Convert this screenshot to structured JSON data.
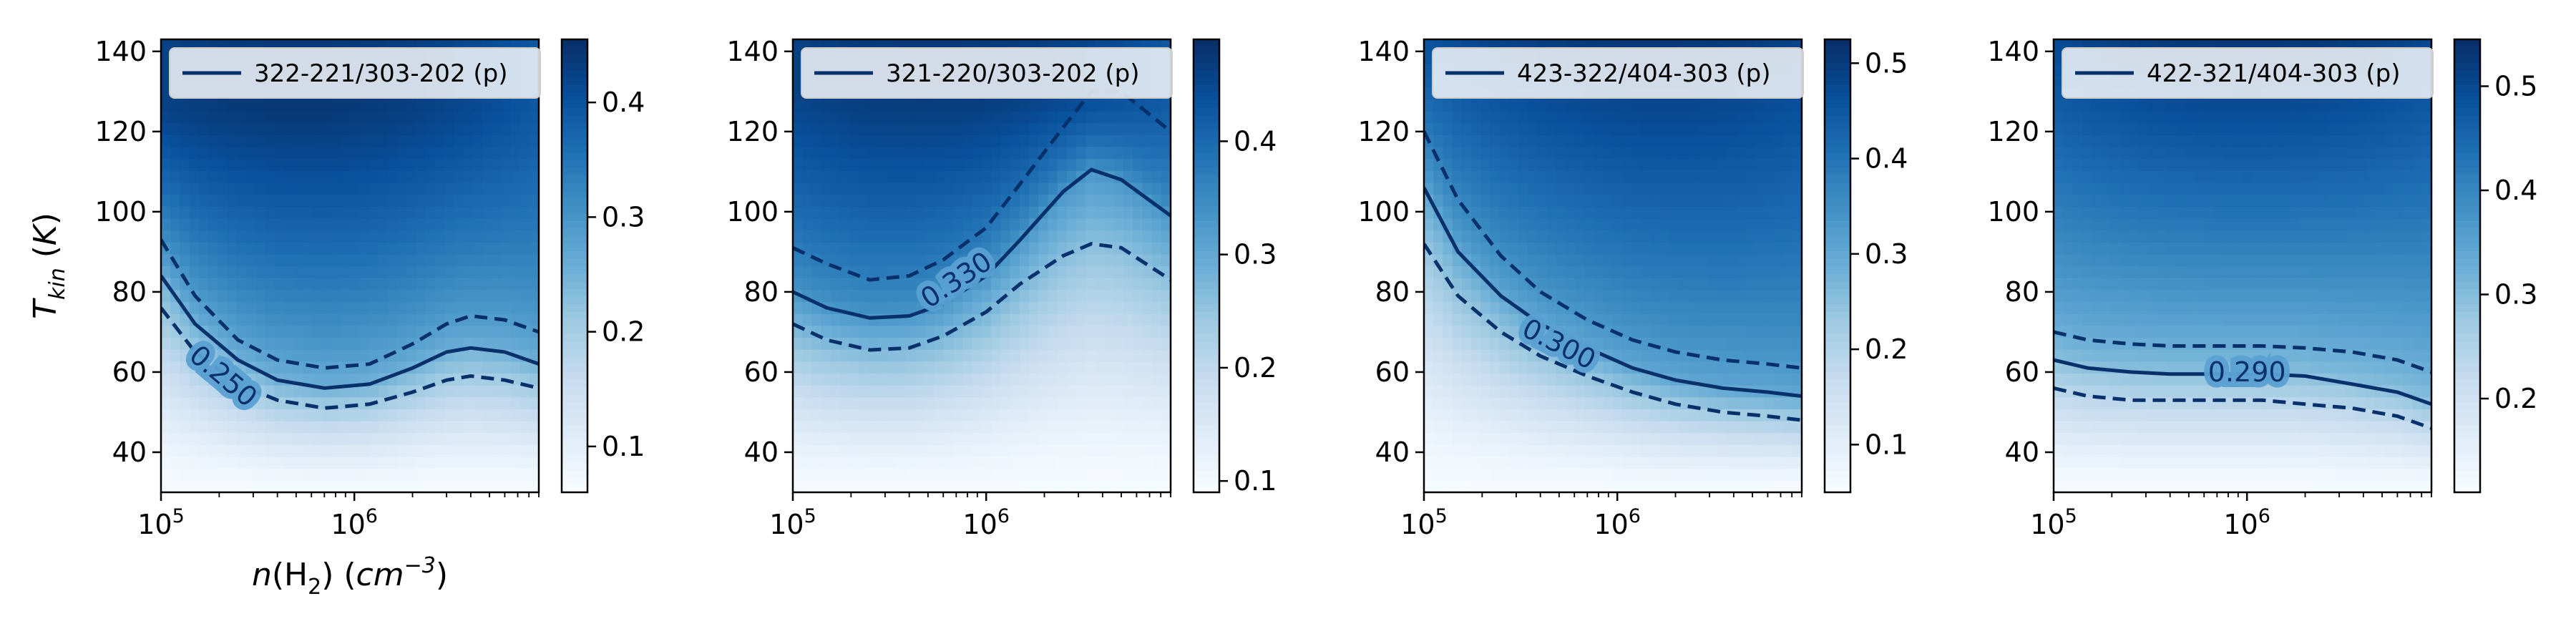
{
  "chart_data": [
    {
      "type": "heatmap",
      "title": "",
      "xlabel": "n(H2) (cm-3)",
      "ylabel": "T_kin (K)",
      "xscale": "log",
      "xlim": [
        100000,
        9000000
      ],
      "ylim": [
        30,
        143
      ],
      "x_ticks": [
        {
          "value": 100000,
          "base": "10",
          "exp": "5"
        },
        {
          "value": 1000000,
          "base": "10",
          "exp": "6"
        }
      ],
      "y_ticks": [
        40,
        60,
        80,
        100,
        120,
        140
      ],
      "colormap": "Blues",
      "colorbar": {
        "vmin": 0.06,
        "vmax": 0.455,
        "ticks": [
          "0.1",
          "0.2",
          "0.3",
          "0.4"
        ],
        "tick_values": [
          0.1,
          0.2,
          0.3,
          0.4
        ]
      },
      "field": {
        "peak_x": 500000,
        "peak_y": 125
      },
      "legend": {
        "label": "322-221/303-202 (p)",
        "placement": "upper-left"
      },
      "contour": {
        "level_label": "0.250",
        "label_at": {
          "x": 210000,
          "y": 59
        },
        "center": {
          "x": [
            100000,
            150000,
            250000,
            400000,
            700000,
            1200000,
            2000000,
            3000000,
            4000000,
            6000000,
            9000000
          ],
          "y": [
            84,
            72,
            63,
            58,
            56,
            57,
            61,
            65,
            66,
            65,
            62
          ]
        },
        "upper": {
          "x": [
            100000,
            150000,
            250000,
            400000,
            700000,
            1200000,
            2000000,
            3000000,
            4000000,
            6000000,
            9000000
          ],
          "y": [
            93,
            79,
            68,
            63,
            61,
            62,
            67,
            72,
            74,
            73,
            70
          ]
        },
        "lower": {
          "x": [
            100000,
            150000,
            250000,
            400000,
            700000,
            1200000,
            2000000,
            3000000,
            4000000,
            6000000,
            9000000
          ],
          "y": [
            76,
            65,
            57,
            53,
            51,
            52,
            55,
            58,
            59,
            58,
            56
          ]
        }
      },
      "show_xlabel": true,
      "show_ylabel": true
    },
    {
      "type": "heatmap",
      "title": "",
      "xlabel": "",
      "ylabel": "",
      "xscale": "log",
      "xlim": [
        100000,
        9000000
      ],
      "ylim": [
        30,
        143
      ],
      "x_ticks": [
        {
          "value": 100000,
          "base": "10",
          "exp": "5"
        },
        {
          "value": 1000000,
          "base": "10",
          "exp": "6"
        }
      ],
      "y_ticks": [
        40,
        60,
        80,
        100,
        120,
        140
      ],
      "colormap": "Blues",
      "colorbar": {
        "vmin": 0.09,
        "vmax": 0.49,
        "ticks": [
          "0.1",
          "0.2",
          "0.3",
          "0.4"
        ],
        "tick_values": [
          0.1,
          0.2,
          0.3,
          0.4
        ]
      },
      "field": {
        "peak_x": 500000,
        "peak_y": 130
      },
      "legend": {
        "label": "321-220/303-202 (p)",
        "placement": "upper-left"
      },
      "contour": {
        "level_label": "0.330",
        "label_at": {
          "x": 700000,
          "y": 83
        },
        "center": {
          "x": [
            100000,
            150000,
            250000,
            400000,
            600000,
            1000000,
            1500000,
            2500000,
            3500000,
            5000000,
            9000000
          ],
          "y": [
            80,
            76,
            73.5,
            74,
            77,
            84,
            93,
            105,
            110.5,
            108,
            99
          ]
        },
        "upper": {
          "x": [
            100000,
            150000,
            250000,
            400000,
            600000,
            1000000,
            1500000,
            2500000,
            3500000,
            5000000,
            9000000
          ],
          "y": [
            91,
            87,
            83,
            84,
            88,
            96,
            107,
            121,
            130,
            130,
            120
          ]
        },
        "lower": {
          "x": [
            100000,
            150000,
            250000,
            400000,
            600000,
            1000000,
            1500000,
            2500000,
            3500000,
            5000000,
            9000000
          ],
          "y": [
            72,
            68,
            65.5,
            66,
            69,
            75,
            82,
            89,
            92,
            91,
            83
          ]
        }
      },
      "show_xlabel": false,
      "show_ylabel": false
    },
    {
      "type": "heatmap",
      "title": "",
      "xlabel": "",
      "ylabel": "",
      "xscale": "log",
      "xlim": [
        100000,
        9000000
      ],
      "ylim": [
        30,
        143
      ],
      "x_ticks": [
        {
          "value": 100000,
          "base": "10",
          "exp": "5"
        },
        {
          "value": 1000000,
          "base": "10",
          "exp": "6"
        }
      ],
      "y_ticks": [
        40,
        60,
        80,
        100,
        120,
        140
      ],
      "colormap": "Blues",
      "colorbar": {
        "vmin": 0.05,
        "vmax": 0.525,
        "ticks": [
          "0.1",
          "0.2",
          "0.3",
          "0.4",
          "0.5"
        ],
        "tick_values": [
          0.1,
          0.2,
          0.3,
          0.4,
          0.5
        ]
      },
      "field": {
        "peak_x": 1500000,
        "peak_y": 140
      },
      "legend": {
        "label": "423-322/404-303 (p)",
        "placement": "upper-left"
      },
      "contour": {
        "level_label": "0.300",
        "label_at": {
          "x": 500000,
          "y": 67
        },
        "center": {
          "x": [
            100000,
            150000,
            250000,
            400000,
            700000,
            1200000,
            2000000,
            3500000,
            6000000,
            9000000
          ],
          "y": [
            106,
            90,
            79,
            72,
            66,
            61,
            58,
            56,
            55,
            54
          ]
        },
        "upper": {
          "x": [
            100000,
            150000,
            250000,
            400000,
            700000,
            1200000,
            2000000,
            3500000,
            6000000,
            9000000
          ],
          "y": [
            120,
            103,
            89,
            80,
            73,
            68,
            65,
            63,
            62,
            61
          ]
        },
        "lower": {
          "x": [
            100000,
            150000,
            250000,
            400000,
            700000,
            1200000,
            2000000,
            3500000,
            6000000,
            9000000
          ],
          "y": [
            92,
            79,
            70,
            64,
            59,
            55,
            52,
            50,
            49,
            48
          ]
        }
      },
      "show_xlabel": false,
      "show_ylabel": false
    },
    {
      "type": "heatmap",
      "title": "",
      "xlabel": "",
      "ylabel": "",
      "xscale": "log",
      "xlim": [
        100000,
        9000000
      ],
      "ylim": [
        30,
        143
      ],
      "x_ticks": [
        {
          "value": 100000,
          "base": "10",
          "exp": "5"
        },
        {
          "value": 1000000,
          "base": "10",
          "exp": "6"
        }
      ],
      "y_ticks": [
        40,
        60,
        80,
        100,
        120,
        140
      ],
      "colormap": "Blues",
      "colorbar": {
        "vmin": 0.11,
        "vmax": 0.545,
        "ticks": [
          "0.2",
          "0.3",
          "0.4",
          "0.5"
        ],
        "tick_values": [
          0.2,
          0.3,
          0.4,
          0.5
        ]
      },
      "field": {
        "peak_x": 1000000,
        "peak_y": 140
      },
      "legend": {
        "label": "422-321/404-303 (p)",
        "placement": "upper-left"
      },
      "contour": {
        "level_label": "0.290",
        "label_at": {
          "x": 1000000,
          "y": 60
        },
        "center": {
          "x": [
            100000,
            150000,
            250000,
            400000,
            700000,
            1200000,
            2000000,
            3500000,
            6000000,
            9000000
          ],
          "y": [
            63,
            61,
            60,
            59.5,
            59.5,
            59.5,
            59,
            57,
            55,
            52
          ]
        },
        "upper": {
          "x": [
            100000,
            150000,
            250000,
            400000,
            700000,
            1200000,
            2000000,
            3500000,
            6000000,
            9000000
          ],
          "y": [
            70,
            68,
            67,
            66.5,
            66.5,
            66.5,
            66,
            65,
            63,
            60
          ]
        },
        "lower": {
          "x": [
            100000,
            150000,
            250000,
            400000,
            700000,
            1200000,
            2000000,
            3500000,
            6000000,
            9000000
          ],
          "y": [
            56,
            54,
            53,
            53,
            53,
            53,
            52,
            51,
            49,
            46
          ]
        }
      },
      "show_xlabel": false,
      "show_ylabel": false
    }
  ]
}
